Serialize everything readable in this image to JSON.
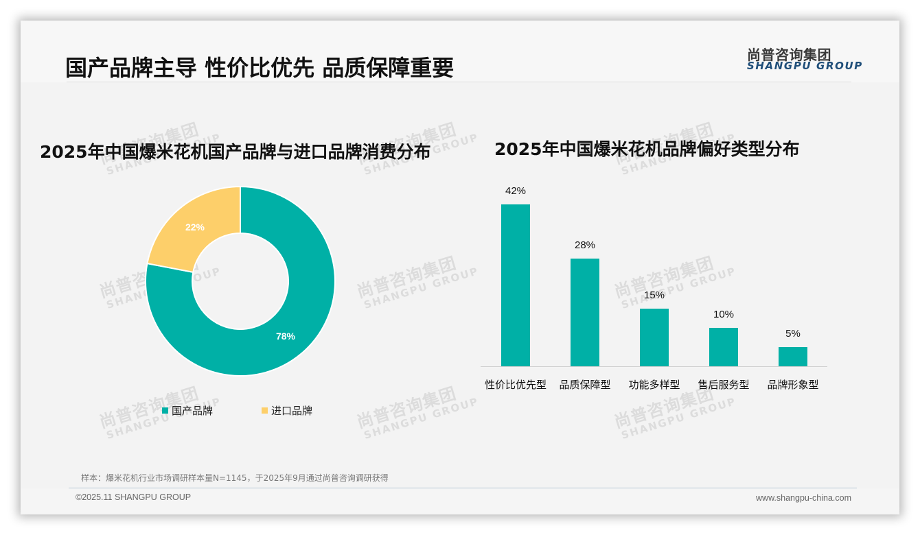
{
  "slide": {
    "title": "国产品牌主导 性价比优先 品质保障重要",
    "logo": {
      "cn": "尚普咨询集团",
      "en": "SHANGPU GROUP"
    },
    "watermark": {
      "cn": "尚普咨询集团",
      "en": "SHANGPU GROUP"
    },
    "source_note": "样本：爆米花机行业市场调研样本量N=1145，于2025年9月通过尚普咨询调研获得",
    "footer": {
      "copyright": "©2025.11 SHANGPU GROUP",
      "website": "www.shangpu-china.com"
    }
  },
  "colors": {
    "teal": "#00b0a6",
    "yellow": "#fdcf6a",
    "background": "#f3f3f3"
  },
  "chart_data": [
    {
      "type": "pie",
      "donut": true,
      "title": "2025年中国爆米花机国产品牌与进口品牌消费分布",
      "categories": [
        "国产品牌",
        "进口品牌"
      ],
      "values": [
        78,
        22
      ],
      "labels": [
        "78%",
        "22%"
      ],
      "colors": [
        "#00b0a6",
        "#fdcf6a"
      ],
      "legend_position": "bottom",
      "start_angle": "12 o'clock, clockwise"
    },
    {
      "type": "bar",
      "title": "2025年中国爆米花机品牌偏好类型分布",
      "categories": [
        "性价比优先型",
        "品质保障型",
        "功能多样型",
        "售后服务型",
        "品牌形象型"
      ],
      "values": [
        42,
        28,
        15,
        10,
        5
      ],
      "labels": [
        "42%",
        "28%",
        "15%",
        "10%",
        "5%"
      ],
      "color": "#00b0a6",
      "xlabel": "",
      "ylabel": "",
      "ylim": [
        0,
        45
      ],
      "grid": false,
      "y_axis_visible": false
    }
  ]
}
